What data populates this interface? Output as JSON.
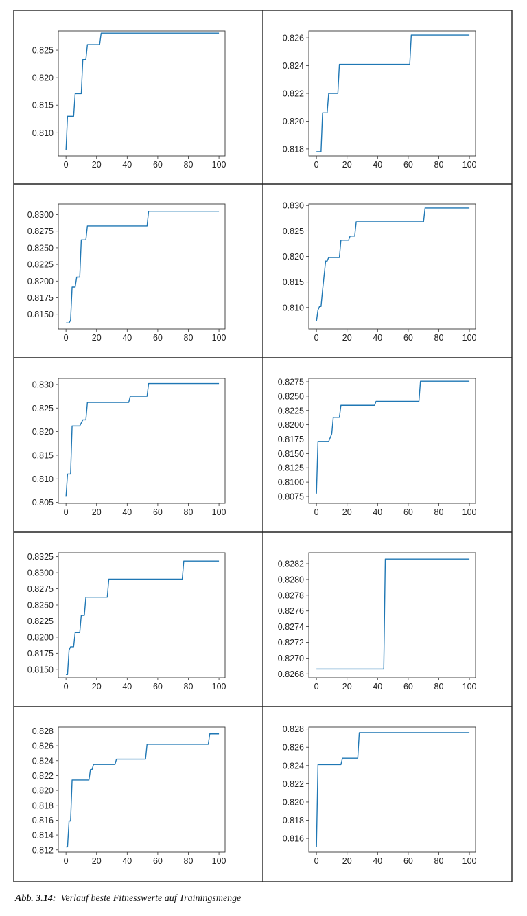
{
  "figure": {
    "caption_label": "Abb. 3.14:",
    "caption_text": "Verlauf beste Fitnesswerte auf Trainingsmenge",
    "line_color": "#1f77b4"
  },
  "chart_data": [
    {
      "type": "line",
      "xlim": [
        -5,
        104
      ],
      "ylim": [
        0.8058,
        0.8285
      ],
      "xticks": [
        0,
        20,
        40,
        60,
        80,
        100
      ],
      "yticks": [
        0.81,
        0.815,
        0.82,
        0.825
      ],
      "ytick_labels": [
        "0.810",
        "0.815",
        "0.820",
        "0.825"
      ],
      "x": [
        0,
        1,
        2,
        5,
        6,
        10,
        11,
        13,
        14,
        20,
        22,
        23,
        100
      ],
      "y": [
        0.8068,
        0.813,
        0.813,
        0.813,
        0.8171,
        0.8171,
        0.8233,
        0.8233,
        0.826,
        0.826,
        0.826,
        0.8281,
        0.8281
      ]
    },
    {
      "type": "line",
      "xlim": [
        -5,
        104
      ],
      "ylim": [
        0.8175,
        0.8265
      ],
      "xticks": [
        0,
        20,
        40,
        60,
        80,
        100
      ],
      "yticks": [
        0.818,
        0.82,
        0.822,
        0.824,
        0.826
      ],
      "ytick_labels": [
        "0.818",
        "0.820",
        "0.822",
        "0.824",
        "0.826"
      ],
      "x": [
        0,
        3,
        4,
        7,
        8,
        14,
        15,
        61,
        62,
        100
      ],
      "y": [
        0.8178,
        0.8178,
        0.8206,
        0.8206,
        0.822,
        0.822,
        0.8241,
        0.8241,
        0.8262,
        0.8262
      ]
    },
    {
      "type": "line",
      "xlim": [
        -5,
        104
      ],
      "ylim": [
        0.8128,
        0.8316
      ],
      "xticks": [
        0,
        20,
        40,
        60,
        80,
        100
      ],
      "yticks": [
        0.815,
        0.8175,
        0.82,
        0.8225,
        0.825,
        0.8275,
        0.83
      ],
      "ytick_labels": [
        "0.8150",
        "0.8175",
        "0.8200",
        "0.8225",
        "0.8250",
        "0.8275",
        "0.8300"
      ],
      "x": [
        0,
        2,
        3,
        4,
        6,
        7,
        9,
        10,
        13,
        14,
        53,
        54,
        100
      ],
      "y": [
        0.8137,
        0.8137,
        0.8141,
        0.8191,
        0.8191,
        0.8206,
        0.8206,
        0.8262,
        0.8262,
        0.8283,
        0.8283,
        0.8305,
        0.8305
      ]
    },
    {
      "type": "line",
      "xlim": [
        -5,
        104
      ],
      "ylim": [
        0.8058,
        0.8303
      ],
      "xticks": [
        0,
        20,
        40,
        60,
        80,
        100
      ],
      "yticks": [
        0.81,
        0.815,
        0.82,
        0.825,
        0.83
      ],
      "ytick_labels": [
        "0.810",
        "0.815",
        "0.820",
        "0.825",
        "0.830"
      ],
      "x": [
        0,
        1,
        2,
        3,
        4,
        6,
        7,
        8,
        15,
        16,
        21,
        22,
        25,
        26,
        70,
        71,
        100
      ],
      "y": [
        0.8073,
        0.8095,
        0.8102,
        0.8102,
        0.8134,
        0.8191,
        0.8191,
        0.8198,
        0.8198,
        0.8232,
        0.8232,
        0.824,
        0.824,
        0.8268,
        0.8268,
        0.8295,
        0.8295
      ]
    },
    {
      "type": "line",
      "xlim": [
        -5,
        104
      ],
      "ylim": [
        0.8048,
        0.8313
      ],
      "xticks": [
        0,
        20,
        40,
        60,
        80,
        100
      ],
      "yticks": [
        0.805,
        0.81,
        0.815,
        0.82,
        0.825,
        0.83
      ],
      "ytick_labels": [
        "0.805",
        "0.810",
        "0.815",
        "0.820",
        "0.825",
        "0.830"
      ],
      "x": [
        0,
        1,
        3,
        4,
        9,
        11,
        13,
        14,
        41,
        42,
        53,
        54,
        100
      ],
      "y": [
        0.8062,
        0.811,
        0.811,
        0.8212,
        0.8212,
        0.8225,
        0.8225,
        0.8262,
        0.8262,
        0.8275,
        0.8275,
        0.8302,
        0.8302
      ]
    },
    {
      "type": "line",
      "xlim": [
        -5,
        104
      ],
      "ylim": [
        0.8063,
        0.8281
      ],
      "xticks": [
        0,
        20,
        40,
        60,
        80,
        100
      ],
      "yticks": [
        0.8075,
        0.81,
        0.8125,
        0.815,
        0.8175,
        0.82,
        0.8225,
        0.825,
        0.8275
      ],
      "ytick_labels": [
        "0.8075",
        "0.8100",
        "0.8125",
        "0.8150",
        "0.8175",
        "0.8200",
        "0.8225",
        "0.8250",
        "0.8275"
      ],
      "x": [
        0,
        1,
        8,
        10,
        11,
        15,
        16,
        38,
        39,
        67,
        68,
        100
      ],
      "y": [
        0.808,
        0.8171,
        0.8171,
        0.8184,
        0.8213,
        0.8213,
        0.8234,
        0.8234,
        0.8241,
        0.8241,
        0.8276,
        0.8276
      ]
    },
    {
      "type": "line",
      "xlim": [
        -5,
        104
      ],
      "ylim": [
        0.8137,
        0.8331
      ],
      "xticks": [
        0,
        20,
        40,
        60,
        80,
        100
      ],
      "yticks": [
        0.815,
        0.8175,
        0.82,
        0.8225,
        0.825,
        0.8275,
        0.83,
        0.8325
      ],
      "ytick_labels": [
        "0.8150",
        "0.8175",
        "0.8200",
        "0.8225",
        "0.8250",
        "0.8275",
        "0.8300",
        "0.8325"
      ],
      "x": [
        0,
        1,
        2,
        3,
        5,
        6,
        9,
        10,
        12,
        13,
        27,
        28,
        76,
        77,
        100
      ],
      "y": [
        0.8142,
        0.8142,
        0.818,
        0.8185,
        0.8185,
        0.8207,
        0.8207,
        0.8234,
        0.8234,
        0.8262,
        0.8262,
        0.829,
        0.829,
        0.8318,
        0.8318
      ]
    },
    {
      "type": "line",
      "xlim": [
        -5,
        104
      ],
      "ylim": [
        0.82675,
        0.82834
      ],
      "xticks": [
        0,
        20,
        40,
        60,
        80,
        100
      ],
      "yticks": [
        0.8268,
        0.827,
        0.8272,
        0.8274,
        0.8276,
        0.8278,
        0.828,
        0.8282
      ],
      "ytick_labels": [
        "0.8268",
        "0.8270",
        "0.8272",
        "0.8274",
        "0.8276",
        "0.8278",
        "0.8280",
        "0.8282"
      ],
      "x": [
        0,
        44,
        45,
        100
      ],
      "y": [
        0.82686,
        0.82686,
        0.82826,
        0.82826
      ]
    },
    {
      "type": "line",
      "xlim": [
        -5,
        104
      ],
      "ylim": [
        0.8117,
        0.8285
      ],
      "xticks": [
        0,
        20,
        40,
        60,
        80,
        100
      ],
      "yticks": [
        0.812,
        0.814,
        0.816,
        0.818,
        0.82,
        0.822,
        0.824,
        0.826,
        0.828
      ],
      "ytick_labels": [
        "0.812",
        "0.814",
        "0.816",
        "0.818",
        "0.820",
        "0.822",
        "0.824",
        "0.826",
        "0.828"
      ],
      "x": [
        0,
        1,
        2,
        3,
        4,
        15,
        16,
        17,
        18,
        32,
        33,
        52,
        53,
        93,
        94,
        100
      ],
      "y": [
        0.8124,
        0.8124,
        0.8159,
        0.8159,
        0.8214,
        0.8214,
        0.8228,
        0.8228,
        0.8235,
        0.8235,
        0.8242,
        0.8242,
        0.8262,
        0.8262,
        0.8276,
        0.8276
      ]
    },
    {
      "type": "line",
      "xlim": [
        -5,
        104
      ],
      "ylim": [
        0.8145,
        0.8282
      ],
      "xticks": [
        0,
        20,
        40,
        60,
        80,
        100
      ],
      "yticks": [
        0.816,
        0.818,
        0.82,
        0.822,
        0.824,
        0.826,
        0.828
      ],
      "ytick_labels": [
        "0.816",
        "0.818",
        "0.820",
        "0.822",
        "0.824",
        "0.826",
        "0.828"
      ],
      "x": [
        0,
        1,
        16,
        17,
        27,
        28,
        100
      ],
      "y": [
        0.8151,
        0.8241,
        0.8241,
        0.8248,
        0.8248,
        0.8276,
        0.8276
      ]
    }
  ]
}
